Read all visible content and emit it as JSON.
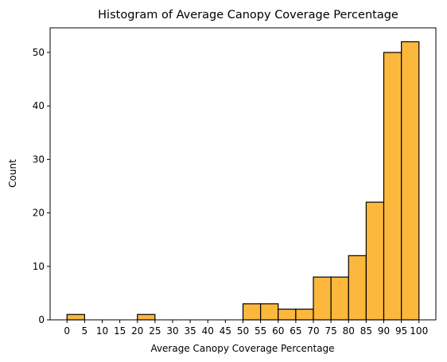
{
  "chart_data": {
    "type": "bar",
    "title": "Histogram of Average Canopy Coverage Percentage",
    "xlabel": "Average Canopy Coverage Percentage",
    "ylabel": "Count",
    "bin_width": 5,
    "bins": [
      {
        "start": 0,
        "end": 5,
        "count": 1
      },
      {
        "start": 5,
        "end": 10,
        "count": 0
      },
      {
        "start": 10,
        "end": 15,
        "count": 0
      },
      {
        "start": 15,
        "end": 20,
        "count": 0
      },
      {
        "start": 20,
        "end": 25,
        "count": 1
      },
      {
        "start": 25,
        "end": 30,
        "count": 0
      },
      {
        "start": 30,
        "end": 35,
        "count": 0
      },
      {
        "start": 35,
        "end": 40,
        "count": 0
      },
      {
        "start": 40,
        "end": 45,
        "count": 0
      },
      {
        "start": 45,
        "end": 50,
        "count": 0
      },
      {
        "start": 50,
        "end": 55,
        "count": 3
      },
      {
        "start": 55,
        "end": 60,
        "count": 3
      },
      {
        "start": 60,
        "end": 65,
        "count": 2
      },
      {
        "start": 65,
        "end": 70,
        "count": 2
      },
      {
        "start": 70,
        "end": 75,
        "count": 8
      },
      {
        "start": 75,
        "end": 80,
        "count": 8
      },
      {
        "start": 80,
        "end": 85,
        "count": 12
      },
      {
        "start": 85,
        "end": 90,
        "count": 22
      },
      {
        "start": 90,
        "end": 95,
        "count": 50
      },
      {
        "start": 95,
        "end": 100,
        "count": 52
      }
    ],
    "xticks": [
      "0",
      "5",
      "10",
      "15",
      "20",
      "25",
      "30",
      "35",
      "40",
      "45",
      "50",
      "55",
      "60",
      "65",
      "70",
      "75",
      "80",
      "85",
      "90",
      "95",
      "100"
    ],
    "yticks": [
      "0",
      "10",
      "20",
      "30",
      "40",
      "50"
    ],
    "xlim": [
      -4.8,
      104.8
    ],
    "ylim": [
      0,
      54.6
    ],
    "grid": false,
    "bar_color": "#fbb83d",
    "edge_color": "#000000"
  }
}
